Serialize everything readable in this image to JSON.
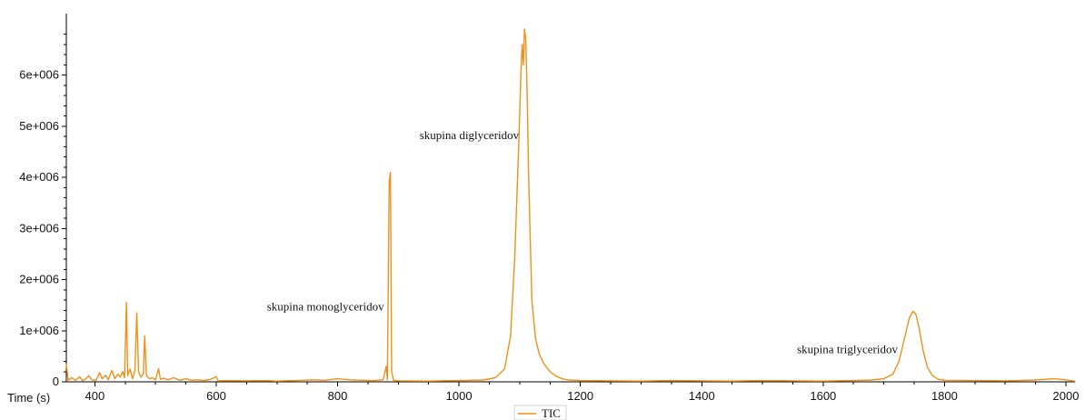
{
  "chart_data": {
    "type": "line",
    "x_axis_label": "Time (s)",
    "xlim": [
      353,
      2015
    ],
    "ylim": [
      0,
      7200000
    ],
    "x_ticks": [
      400,
      600,
      800,
      1000,
      1200,
      1400,
      1600,
      1800,
      2000
    ],
    "x_tick_labels": [
      "400",
      "600",
      "800",
      "1000",
      "1200",
      "1400",
      "1600",
      "1800",
      "2000"
    ],
    "y_ticks": [
      0,
      1000000,
      2000000,
      3000000,
      4000000,
      5000000,
      6000000
    ],
    "y_tick_labels": [
      "0",
      "1e+006",
      "2e+006",
      "3e+006",
      "4e+006",
      "5e+006",
      "6e+006"
    ],
    "grid": false,
    "legend": {
      "position": "bottom-center",
      "entries": [
        "TIC"
      ]
    },
    "series": [
      {
        "name": "TIC",
        "color": "#f0901a",
        "points": [
          [
            353,
            350000
          ],
          [
            356,
            30000
          ],
          [
            362,
            80000
          ],
          [
            368,
            30000
          ],
          [
            375,
            100000
          ],
          [
            380,
            20000
          ],
          [
            385,
            60000
          ],
          [
            390,
            120000
          ],
          [
            395,
            40000
          ],
          [
            402,
            25000
          ],
          [
            408,
            180000
          ],
          [
            412,
            60000
          ],
          [
            418,
            130000
          ],
          [
            422,
            40000
          ],
          [
            428,
            220000
          ],
          [
            433,
            60000
          ],
          [
            438,
            150000
          ],
          [
            442,
            90000
          ],
          [
            446,
            200000
          ],
          [
            449,
            80000
          ],
          [
            452,
            1550000
          ],
          [
            454,
            120000
          ],
          [
            458,
            250000
          ],
          [
            462,
            60000
          ],
          [
            466,
            220000
          ],
          [
            469,
            1350000
          ],
          [
            472,
            200000
          ],
          [
            476,
            90000
          ],
          [
            480,
            160000
          ],
          [
            482,
            900000
          ],
          [
            485,
            120000
          ],
          [
            490,
            60000
          ],
          [
            495,
            80000
          ],
          [
            500,
            40000
          ],
          [
            505,
            260000
          ],
          [
            508,
            50000
          ],
          [
            515,
            70000
          ],
          [
            520,
            40000
          ],
          [
            530,
            80000
          ],
          [
            540,
            30000
          ],
          [
            550,
            60000
          ],
          [
            560,
            30000
          ],
          [
            570,
            40000
          ],
          [
            580,
            25000
          ],
          [
            590,
            45000
          ],
          [
            600,
            100000
          ],
          [
            603,
            20000
          ],
          [
            620,
            25000
          ],
          [
            650,
            20000
          ],
          [
            680,
            25000
          ],
          [
            700,
            15000
          ],
          [
            730,
            25000
          ],
          [
            760,
            40000
          ],
          [
            780,
            30000
          ],
          [
            800,
            60000
          ],
          [
            820,
            40000
          ],
          [
            840,
            30000
          ],
          [
            860,
            25000
          ],
          [
            875,
            40000
          ],
          [
            880,
            300000
          ],
          [
            882,
            40000
          ],
          [
            885,
            3900000
          ],
          [
            887,
            4100000
          ],
          [
            889,
            200000
          ],
          [
            892,
            30000
          ],
          [
            900,
            20000
          ],
          [
            950,
            15000
          ],
          [
            1000,
            25000
          ],
          [
            1040,
            35000
          ],
          [
            1060,
            80000
          ],
          [
            1075,
            250000
          ],
          [
            1085,
            900000
          ],
          [
            1092,
            2500000
          ],
          [
            1098,
            4500000
          ],
          [
            1102,
            6000000
          ],
          [
            1104,
            6600000
          ],
          [
            1106,
            6200000
          ],
          [
            1108,
            6900000
          ],
          [
            1110,
            6700000
          ],
          [
            1112,
            5800000
          ],
          [
            1115,
            3900000
          ],
          [
            1120,
            1600000
          ],
          [
            1126,
            850000
          ],
          [
            1132,
            550000
          ],
          [
            1140,
            350000
          ],
          [
            1150,
            200000
          ],
          [
            1160,
            110000
          ],
          [
            1170,
            60000
          ],
          [
            1180,
            35000
          ],
          [
            1200,
            25000
          ],
          [
            1250,
            20000
          ],
          [
            1300,
            15000
          ],
          [
            1350,
            25000
          ],
          [
            1400,
            20000
          ],
          [
            1450,
            15000
          ],
          [
            1500,
            25000
          ],
          [
            1550,
            20000
          ],
          [
            1600,
            15000
          ],
          [
            1650,
            25000
          ],
          [
            1680,
            35000
          ],
          [
            1700,
            60000
          ],
          [
            1715,
            150000
          ],
          [
            1725,
            400000
          ],
          [
            1735,
            900000
          ],
          [
            1742,
            1250000
          ],
          [
            1748,
            1380000
          ],
          [
            1753,
            1320000
          ],
          [
            1758,
            1050000
          ],
          [
            1765,
            600000
          ],
          [
            1772,
            280000
          ],
          [
            1780,
            120000
          ],
          [
            1790,
            50000
          ],
          [
            1800,
            30000
          ],
          [
            1850,
            25000
          ],
          [
            1900,
            20000
          ],
          [
            1950,
            35000
          ],
          [
            1980,
            60000
          ],
          [
            2000,
            40000
          ],
          [
            2010,
            20000
          ],
          [
            2015,
            15000
          ]
        ]
      }
    ],
    "annotations": [
      {
        "text": "skupina monoglyceridov",
        "x": 780,
        "y": 1400000,
        "anchor": "middle"
      },
      {
        "text": "skupina diglyceridov",
        "x": 1017,
        "y": 4750000,
        "anchor": "middle"
      },
      {
        "text": "skupina triglyceridov",
        "x": 1640,
        "y": 560000,
        "anchor": "middle"
      }
    ]
  }
}
